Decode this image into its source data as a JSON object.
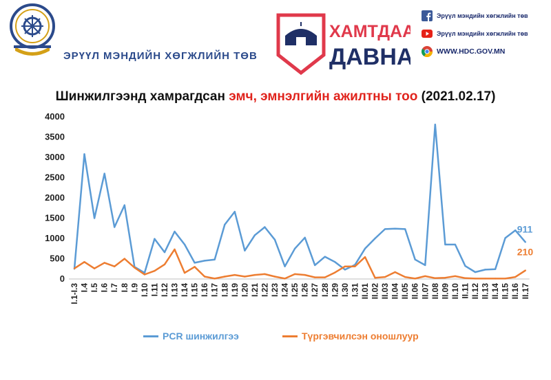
{
  "header": {
    "org_name": "ЭРҮҮЛ МЭНДИЙН ХӨГЖЛИЙН ТӨВ",
    "org_logo_icon": "dharma-wheel-seal-icon",
    "campaign_logo": {
      "line1": "ХАМТДАА",
      "line2": "ДАВНА",
      "icon": "ger-tent-icon"
    },
    "contacts": [
      {
        "icon": "facebook-icon",
        "text": "Эрүүл мэндийн хөгжлийн төв"
      },
      {
        "icon": "youtube-icon",
        "text": "Эрүүл мэндийн хөгжлийн төв"
      },
      {
        "icon": "chrome-icon",
        "text": "WWW.HDC.GOV.MN"
      }
    ]
  },
  "chart_title": {
    "part1": "Шинжилгээнд хамрагдсан ",
    "part2": "эмч, эмнэлгийн ажилтны тоо",
    "part3": " (2021.02.17)"
  },
  "chart_data": {
    "type": "line",
    "title": "Шинжилгээнд хамрагдсан эмч, эмнэлгийн ажилтны тоо (2021.02.17)",
    "ylim": [
      0,
      4000
    ],
    "yticks": [
      0,
      500,
      1000,
      1500,
      2000,
      2500,
      3000,
      3500,
      4000
    ],
    "grid": false,
    "legend_position": "bottom",
    "categories": [
      "I.1-I.3",
      "I.4",
      "I.5",
      "I.6",
      "I.7",
      "I.8",
      "I.9",
      "I.10",
      "I.11",
      "I.12",
      "I.13",
      "I.14",
      "I.15",
      "I.16",
      "I.17",
      "I.18",
      "I.19",
      "I.20",
      "I.21",
      "I.22",
      "I.23",
      "I.24",
      "I.25",
      "I.26",
      "I.27",
      "I.28",
      "I.29",
      "I.30",
      "I.31",
      "II.01",
      "II.02",
      "II.03",
      "II.04",
      "II.05",
      "II.06",
      "II.07",
      "II.08",
      "II.09",
      "II.10",
      "II.11",
      "II.12",
      "II.13",
      "II.14",
      "II.15",
      "II.16",
      "II.17"
    ],
    "series": [
      {
        "name": "PCR шинжилгээ",
        "color": "#5b9bd5",
        "values": [
          250,
          3080,
          1500,
          2600,
          1280,
          1820,
          300,
          150,
          990,
          660,
          1170,
          850,
          400,
          450,
          480,
          1340,
          1660,
          700,
          1080,
          1280,
          970,
          310,
          750,
          1020,
          340,
          550,
          420,
          230,
          350,
          750,
          1000,
          1230,
          1240,
          1230,
          480,
          340,
          3810,
          850,
          850,
          320,
          170,
          230,
          240,
          1010,
          1200,
          911
        ],
        "end_label": "911"
      },
      {
        "name": "Түргэвчилсэн оношлуур",
        "color": "#ed7d31",
        "values": [
          260,
          420,
          260,
          400,
          310,
          500,
          280,
          110,
          200,
          360,
          730,
          150,
          300,
          60,
          10,
          60,
          100,
          60,
          100,
          120,
          60,
          10,
          120,
          100,
          40,
          40,
          160,
          310,
          310,
          540,
          30,
          50,
          170,
          50,
          10,
          70,
          20,
          30,
          70,
          20,
          10,
          10,
          10,
          10,
          50,
          210
        ],
        "end_label": "210"
      }
    ]
  }
}
